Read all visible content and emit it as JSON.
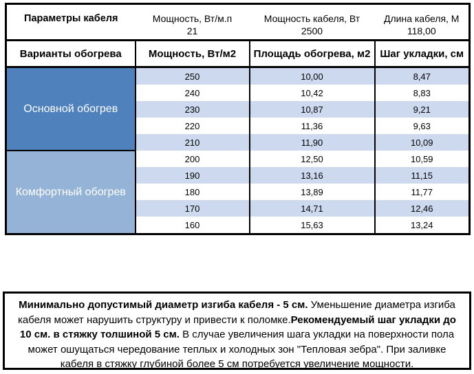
{
  "colors": {
    "group_main": "#4f81bd",
    "group_comfort": "#95b3d7",
    "band_row": "#ccd9ef",
    "plain_row": "#ffffff",
    "border": "#000000",
    "group_text": "#ffffff"
  },
  "table": {
    "params": {
      "title": "Параметры кабеля",
      "cols": [
        {
          "label": "Мощность, Вт/м.п",
          "value": "21"
        },
        {
          "label": "Мощность кабеля, Вт",
          "value": "2500"
        },
        {
          "label": "Длина кабеля, М",
          "value": "118,00"
        }
      ]
    },
    "columns": [
      "Варианты обогрева",
      "Мощность, Вт/м2",
      "Площадь обогрева, м2",
      "Шаг укладки, см"
    ],
    "groups": [
      {
        "label": "Основной обогрев",
        "name": "group-label-main-heating",
        "color_key": "group_main",
        "rows": [
          [
            "250",
            "10,00",
            "8,47"
          ],
          [
            "240",
            "10,42",
            "8,83"
          ],
          [
            "230",
            "10,87",
            "9,21"
          ],
          [
            "220",
            "11,36",
            "9,63"
          ],
          [
            "210",
            "11,90",
            "10,09"
          ]
        ]
      },
      {
        "label": "Комфортный обогрев",
        "name": "group-label-comfort-heating",
        "color_key": "group_comfort",
        "rows": [
          [
            "200",
            "12,50",
            "10,59"
          ],
          [
            "190",
            "13,16",
            "11,15"
          ],
          [
            "180",
            "13,89",
            "11,77"
          ],
          [
            "170",
            "14,71",
            "12,46"
          ],
          [
            "160",
            "15,63",
            "13,24"
          ]
        ]
      }
    ]
  },
  "note": {
    "segments": [
      {
        "bold": true,
        "text": "Минимально допустимый диаметр изгиба кабеля - 5 см."
      },
      {
        "bold": false,
        "text": "  Уменьшение диаметра изгиба кабеля может нарушить структуру и привести к поломке."
      },
      {
        "bold": true,
        "text": "Рекомендуемый шаг укладки до 10 см. в стяжку толшиной 5 см."
      },
      {
        "bold": false,
        "text": " В  случае увеличения шага укладки на поверхности пола может ошущаться чередование теплых и холодных зон \"Тепловая зебра\". При заливке кабеля в стяжку глубиной более 5 см потребуется увеличение мощности."
      }
    ]
  }
}
